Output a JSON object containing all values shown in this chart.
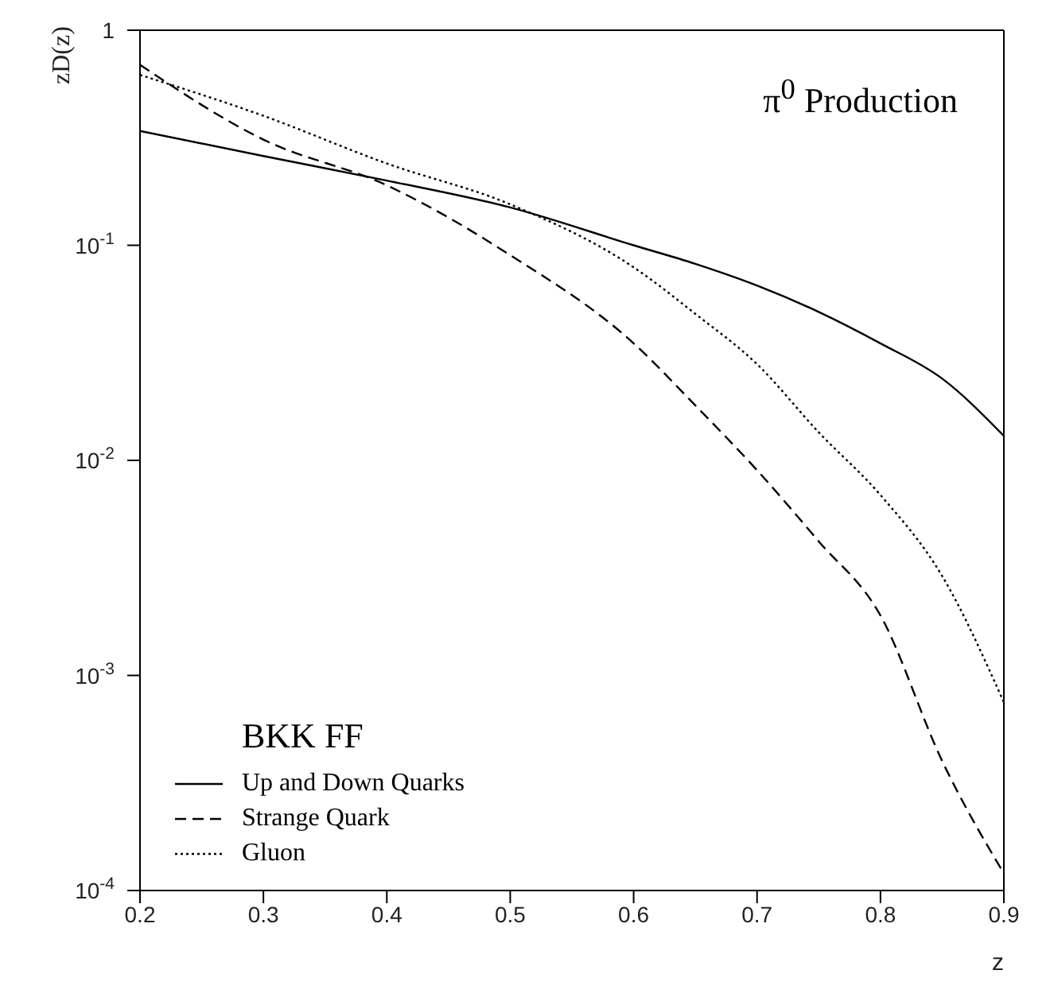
{
  "chart_data": {
    "type": "line",
    "xlabel": "z",
    "ylabel": "zD(z)",
    "legend_title": "BKK FF",
    "annotations": [
      "π$^{0}$ Production"
    ],
    "x": [
      0.2,
      0.3,
      0.4,
      0.5,
      0.6,
      0.65,
      0.7,
      0.75,
      0.8,
      0.85,
      0.9
    ],
    "series": [
      {
        "name": "Up and Down Quarks",
        "color": "#000000",
        "line_style": "solid",
        "values": [
          0.34,
          0.26,
          0.2,
          0.15,
          0.1,
          0.082,
          0.065,
          0.049,
          0.035,
          0.024,
          0.013
        ]
      },
      {
        "name": "Strange Quark",
        "color": "#000000",
        "line_style": "dashed",
        "values": [
          0.69,
          0.31,
          0.19,
          0.09,
          0.035,
          0.018,
          0.009,
          0.0042,
          0.0019,
          0.0004,
          0.00012
        ]
      },
      {
        "name": "Gluon",
        "color": "#000000",
        "line_style": "dotted",
        "values": [
          0.62,
          0.4,
          0.24,
          0.155,
          0.079,
          0.048,
          0.028,
          0.0135,
          0.0069,
          0.0029,
          0.00075
        ]
      }
    ],
    "xlim": [
      0.2,
      0.9
    ],
    "xticks": [
      0.2,
      0.3,
      0.4,
      0.5,
      0.6,
      0.7,
      0.8,
      0.9
    ],
    "ylim": [
      0.0001,
      1
    ],
    "yticks": [
      {
        "value": 0.0001,
        "label": "10$^{-4}$"
      },
      {
        "value": 0.001,
        "label": "10$^{-3}$"
      },
      {
        "value": 0.01,
        "label": "10$^{-2}$"
      },
      {
        "value": 0.1,
        "label": "10$^{-1}$"
      },
      1
    ],
    "log": "y",
    "grid": false,
    "legend": "bottom left",
    "marker": "none"
  }
}
